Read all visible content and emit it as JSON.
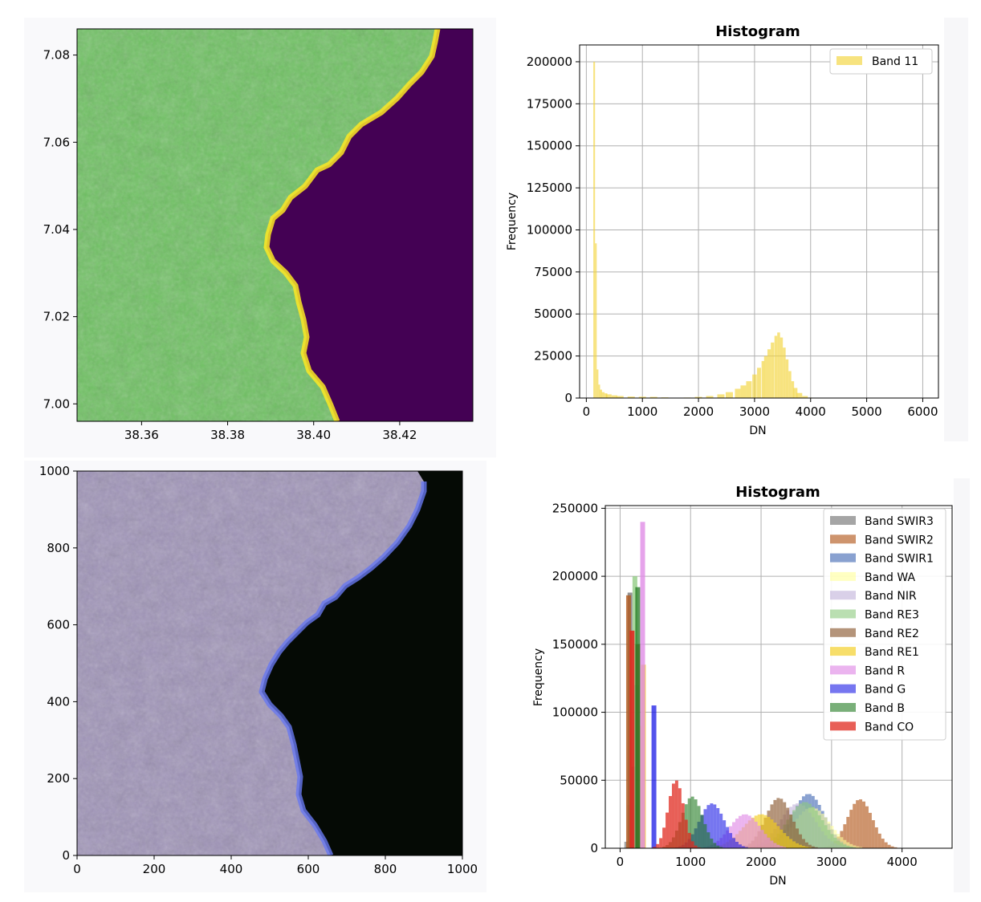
{
  "chart_data": [
    {
      "type": "heatmap",
      "panel": "top-left",
      "colormap": "viridis",
      "xticks": [
        38.36,
        38.38,
        38.4,
        38.42
      ],
      "xtick_labels": [
        "38.36",
        "38.38",
        "38.40",
        "38.42"
      ],
      "yticks": [
        7.0,
        7.02,
        7.04,
        7.06,
        7.08
      ],
      "ytick_labels": [
        "7.00",
        "7.02",
        "7.04",
        "7.06",
        "7.08"
      ],
      "xlim": [
        38.345,
        38.437
      ],
      "ylim": [
        7.086,
        6.996
      ],
      "colors": {
        "water": "#440154",
        "land_mid": "#6cc25f",
        "land_high": "#fde725",
        "land_low": "#2f9c8e"
      }
    },
    {
      "type": "bar",
      "panel": "top-right",
      "title": "Histogram",
      "xlabel": "DN",
      "ylabel": "Frequency",
      "xlim": [
        -120,
        6280
      ],
      "ylim": [
        0,
        210000
      ],
      "xticks": [
        0,
        1000,
        2000,
        3000,
        4000,
        5000,
        6000
      ],
      "xtick_labels": [
        "0",
        "1000",
        "2000",
        "3000",
        "4000",
        "5000",
        "6000"
      ],
      "yticks": [
        0,
        25000,
        50000,
        75000,
        100000,
        125000,
        150000,
        175000,
        200000
      ],
      "ytick_labels": [
        "0",
        "25000",
        "50000",
        "75000",
        "100000",
        "125000",
        "150000",
        "175000",
        "200000"
      ],
      "grid": true,
      "legend": "top-right",
      "series": [
        {
          "name": "Band 11",
          "color": "#f2d43a",
          "opacity": 0.65,
          "bins": [
            [
              140,
              200000
            ],
            [
              170,
              92000
            ],
            [
              200,
              17000
            ],
            [
              230,
              8000
            ],
            [
              260,
              5000
            ],
            [
              300,
              3500
            ],
            [
              350,
              2800
            ],
            [
              400,
              2200
            ],
            [
              500,
              1600
            ],
            [
              600,
              1200
            ],
            [
              800,
              900
            ],
            [
              1000,
              800
            ],
            [
              1200,
              700
            ],
            [
              1400,
              400
            ],
            [
              1600,
              100
            ],
            [
              1800,
              300
            ],
            [
              2000,
              700
            ],
            [
              2200,
              1200
            ],
            [
              2400,
              2200
            ],
            [
              2550,
              3500
            ],
            [
              2700,
              5500
            ],
            [
              2800,
              7500
            ],
            [
              2900,
              10000
            ],
            [
              3000,
              14000
            ],
            [
              3080,
              18000
            ],
            [
              3150,
              22000
            ],
            [
              3200,
              25000
            ],
            [
              3260,
              29000
            ],
            [
              3320,
              33000
            ],
            [
              3380,
              37000
            ],
            [
              3430,
              39000
            ],
            [
              3480,
              36000
            ],
            [
              3530,
              30000
            ],
            [
              3580,
              23000
            ],
            [
              3630,
              16000
            ],
            [
              3680,
              10000
            ],
            [
              3730,
              6000
            ],
            [
              3800,
              3000
            ],
            [
              3900,
              1200
            ],
            [
              4000,
              300
            ]
          ]
        }
      ]
    },
    {
      "type": "heatmap",
      "panel": "bottom-left",
      "colormap": "rgb-composite",
      "xticks": [
        0,
        200,
        400,
        600,
        800,
        1000
      ],
      "xtick_labels": [
        "0",
        "200",
        "400",
        "600",
        "800",
        "1000"
      ],
      "yticks": [
        0,
        200,
        400,
        600,
        800,
        1000
      ],
      "ytick_labels": [
        "0",
        "200",
        "400",
        "600",
        "800",
        "1000"
      ],
      "xlim": [
        0,
        1000
      ],
      "ylim": [
        1000,
        0
      ],
      "colors": {
        "water": "#050a05",
        "land": "#9e92b8",
        "bright": "#e0d8e0",
        "blue": "#4a4ee0",
        "shore": "#6878f0"
      }
    },
    {
      "type": "bar",
      "panel": "bottom-right",
      "title": "Histogram",
      "xlabel": "DN",
      "ylabel": "Frequency",
      "xlim": [
        -210,
        4710
      ],
      "ylim": [
        0,
        252000
      ],
      "xticks": [
        0,
        1000,
        2000,
        3000,
        4000
      ],
      "xtick_labels": [
        "0",
        "1000",
        "2000",
        "3000",
        "4000"
      ],
      "yticks": [
        0,
        50000,
        100000,
        150000,
        200000,
        250000
      ],
      "ytick_labels": [
        "0",
        "50000",
        "100000",
        "150000",
        "200000",
        "250000"
      ],
      "grid": true,
      "legend": "top-right",
      "series": [
        {
          "name": "Band SWIR3",
          "color": "#7f7f7f",
          "opacity": 0.7,
          "spike": [
            140,
            188000
          ],
          "peak_x": 150,
          "peak_y": 60000,
          "sigma": 40
        },
        {
          "name": "Band SWIR2",
          "color": "#b35a1f",
          "opacity": 0.65,
          "spike": [
            120,
            186000
          ],
          "peak_x": 3380,
          "peak_y": 36000,
          "sigma": 180
        },
        {
          "name": "Band SWIR1",
          "color": "#3b63b0",
          "opacity": 0.6,
          "spike": [
            200,
            60000
          ],
          "peak_x": 2650,
          "peak_y": 40000,
          "sigma": 230
        },
        {
          "name": "Band WA",
          "color": "#ffff99",
          "opacity": 0.6,
          "spike": [
            290,
            90000
          ],
          "peak_x": 2700,
          "peak_y": 30000,
          "sigma": 260
        },
        {
          "name": "Band NIR",
          "color": "#bfb0d8",
          "opacity": 0.6,
          "spike": [
            230,
            120000
          ],
          "peak_x": 2500,
          "peak_y": 33000,
          "sigma": 250
        },
        {
          "name": "Band RE3",
          "color": "#8cc97d",
          "opacity": 0.6,
          "spike": [
            210,
            200000
          ],
          "peak_x": 2600,
          "peak_y": 34000,
          "sigma": 250
        },
        {
          "name": "Band RE2",
          "color": "#8c5a32",
          "opacity": 0.65,
          "spike": [
            250,
            150000
          ],
          "peak_x": 2230,
          "peak_y": 37000,
          "sigma": 190
        },
        {
          "name": "Band RE1",
          "color": "#f2cc1a",
          "opacity": 0.65,
          "spike": [
            330,
            135000
          ],
          "peak_x": 1980,
          "peak_y": 25000,
          "sigma": 260
        },
        {
          "name": "Band R",
          "color": "#e08ce6",
          "opacity": 0.65,
          "spike": [
            320,
            240000
          ],
          "peak_x": 1750,
          "peak_y": 25000,
          "sigma": 220
        },
        {
          "name": "Band G",
          "color": "#1a1ae6",
          "opacity": 0.6,
          "spike": [
            480,
            105000
          ],
          "peak_x": 1280,
          "peak_y": 33000,
          "sigma": 180
        },
        {
          "name": "Band B",
          "color": "#1f7a1f",
          "opacity": 0.6,
          "spike": [
            250,
            192000
          ],
          "peak_x": 1000,
          "peak_y": 38000,
          "sigma": 150
        },
        {
          "name": "Band CO",
          "color": "#e02a1f",
          "opacity": 0.75,
          "spike": [
            170,
            160000
          ],
          "peak_x": 770,
          "peak_y": 50000,
          "sigma": 110
        }
      ]
    }
  ]
}
